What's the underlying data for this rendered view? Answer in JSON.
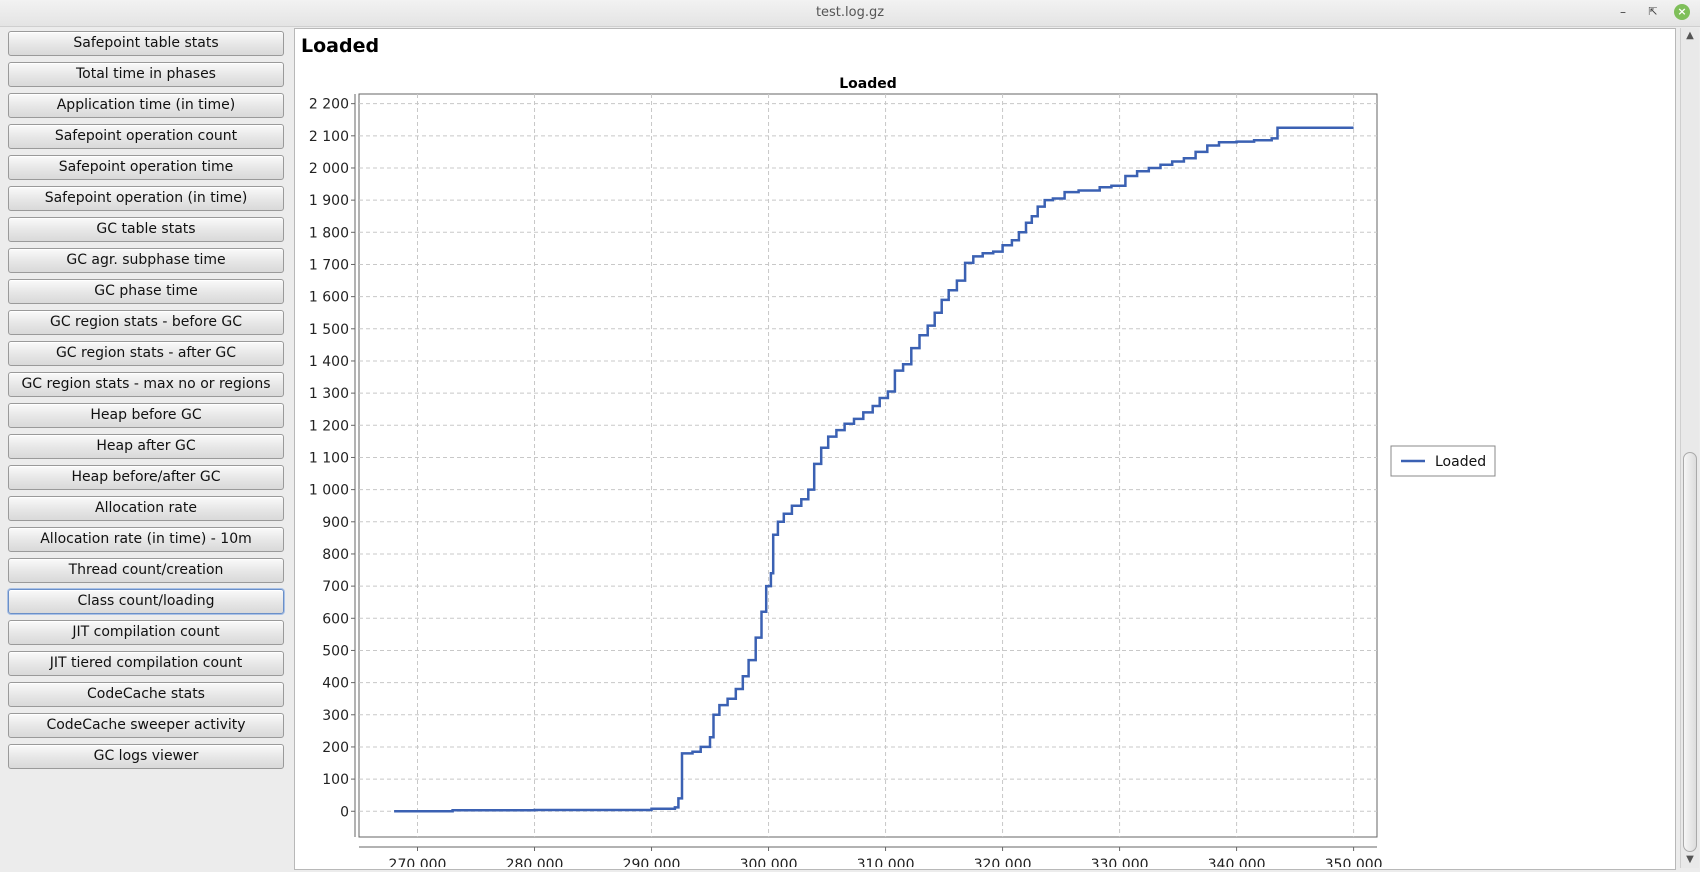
{
  "window": {
    "title": "test.log.gz"
  },
  "sidebar": {
    "items": [
      {
        "label": "Safepoint table stats"
      },
      {
        "label": "Total time in phases"
      },
      {
        "label": "Application time (in time)"
      },
      {
        "label": "Safepoint operation count"
      },
      {
        "label": "Safepoint operation time"
      },
      {
        "label": "Safepoint operation (in time)"
      },
      {
        "label": "GC table stats"
      },
      {
        "label": "GC agr. subphase time"
      },
      {
        "label": "GC phase time"
      },
      {
        "label": "GC region stats - before GC"
      },
      {
        "label": "GC region stats - after GC"
      },
      {
        "label": "GC region stats - max no or regions"
      },
      {
        "label": "Heap before GC"
      },
      {
        "label": "Heap after GC"
      },
      {
        "label": "Heap before/after GC"
      },
      {
        "label": "Allocation rate"
      },
      {
        "label": "Allocation rate (in time) - 10m"
      },
      {
        "label": "Thread count/creation"
      },
      {
        "label": "Class count/loading"
      },
      {
        "label": "JIT compilation count"
      },
      {
        "label": "JIT tiered compilation count"
      },
      {
        "label": "CodeCache stats"
      },
      {
        "label": "CodeCache sweeper activity"
      },
      {
        "label": "GC logs viewer"
      }
    ],
    "active_index": 18
  },
  "main": {
    "panel_title": "Loaded"
  },
  "chart_data": {
    "type": "line",
    "title": "Loaded",
    "xlabel": "",
    "ylabel": "",
    "xlim": [
      265000,
      352000
    ],
    "ylim": [
      -80,
      2230
    ],
    "x_ticks": [
      270000,
      280000,
      290000,
      300000,
      310000,
      320000,
      330000,
      340000,
      350000
    ],
    "x_tick_labels": [
      "270 000",
      "280 000",
      "290 000",
      "300 000",
      "310 000",
      "320 000",
      "330 000",
      "340 000",
      "350 000"
    ],
    "y_ticks": [
      0,
      100,
      200,
      300,
      400,
      500,
      600,
      700,
      800,
      900,
      1000,
      1100,
      1200,
      1300,
      1400,
      1500,
      1600,
      1700,
      1800,
      1900,
      2000,
      2100,
      2200
    ],
    "y_tick_labels": [
      "0",
      "100",
      "200",
      "300",
      "400",
      "500",
      "600",
      "700",
      "800",
      "900",
      "1 000",
      "1 100",
      "1 200",
      "1 300",
      "1 400",
      "1 500",
      "1 600",
      "1 700",
      "1 800",
      "1 900",
      "2 000",
      "2 100",
      "2 200"
    ],
    "grid": true,
    "legend_position": "right",
    "series": [
      {
        "name": "Loaded",
        "color": "#3b61b3",
        "x": [
          268000,
          273000,
          280000,
          290000,
          292000,
          292300,
          292600,
          293500,
          294200,
          295000,
          295300,
          295800,
          296500,
          297200,
          297800,
          298300,
          298900,
          299400,
          299800,
          300200,
          300400,
          300800,
          301300,
          302000,
          302800,
          303400,
          303900,
          304500,
          305100,
          305800,
          306500,
          307300,
          308100,
          308900,
          309500,
          310200,
          310800,
          311500,
          312200,
          312900,
          313600,
          314200,
          314800,
          315400,
          316100,
          316800,
          317500,
          318300,
          319200,
          320000,
          320800,
          321400,
          322000,
          322500,
          323000,
          323600,
          324300,
          325300,
          326500,
          327500,
          328300,
          329300,
          330500,
          331500,
          332500,
          333500,
          334500,
          335500,
          336500,
          337500,
          338500,
          340000,
          341500,
          343000,
          343500,
          345000,
          347000,
          350000
        ],
        "y": [
          0,
          3,
          4,
          8,
          12,
          40,
          180,
          185,
          200,
          230,
          300,
          330,
          350,
          380,
          420,
          470,
          540,
          620,
          700,
          740,
          860,
          900,
          925,
          950,
          970,
          1000,
          1080,
          1130,
          1165,
          1185,
          1205,
          1220,
          1240,
          1260,
          1285,
          1305,
          1370,
          1390,
          1440,
          1480,
          1510,
          1550,
          1590,
          1620,
          1650,
          1705,
          1725,
          1735,
          1740,
          1760,
          1775,
          1800,
          1830,
          1850,
          1880,
          1900,
          1905,
          1925,
          1930,
          1930,
          1940,
          1945,
          1975,
          1990,
          2000,
          2010,
          2020,
          2030,
          2050,
          2070,
          2080,
          2082,
          2086,
          2092,
          2125,
          2125,
          2125,
          2125
        ]
      }
    ]
  }
}
